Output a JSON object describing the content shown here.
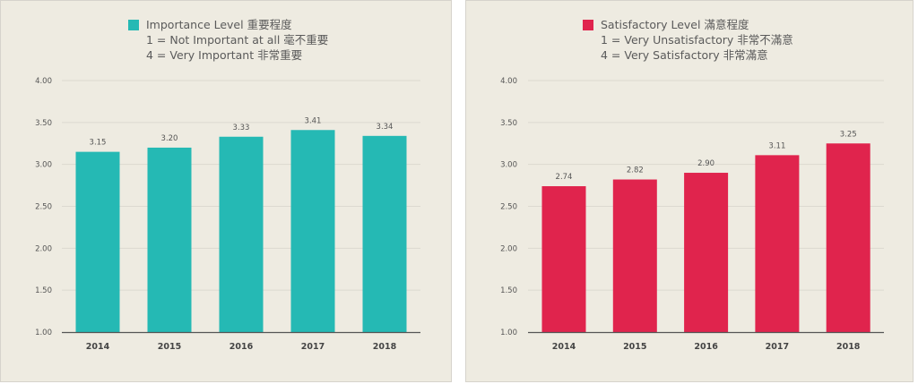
{
  "chart_data": [
    {
      "type": "bar",
      "legend": {
        "title": "Importance Level 重要程度",
        "line1": "1 = Not Important at all 毫不重要",
        "line2": "4 = Very Important 非常重要"
      },
      "color": "#25b9b4",
      "categories": [
        "2014",
        "2015",
        "2016",
        "2017",
        "2018"
      ],
      "values": [
        3.15,
        3.2,
        3.33,
        3.41,
        3.34
      ],
      "value_labels": [
        "3.15",
        "3.20",
        "3.33",
        "3.41",
        "3.34"
      ],
      "yticks": [
        "1.00",
        "1.50",
        "2.00",
        "2.50",
        "3.00",
        "3.50",
        "4.00"
      ],
      "ylim": [
        1,
        4
      ],
      "grid": true,
      "legend_placement": "top-center"
    },
    {
      "type": "bar",
      "legend": {
        "title": "Satisfactory Level 滿意程度",
        "line1": "1 = Very Unsatisfactory 非常不滿意",
        "line2": "4 = Very Satisfactory 非常滿意"
      },
      "color": "#e0244d",
      "categories": [
        "2014",
        "2015",
        "2016",
        "2017",
        "2018"
      ],
      "values": [
        2.74,
        2.82,
        2.9,
        3.11,
        3.25
      ],
      "value_labels": [
        "2.74",
        "2.82",
        "2.90",
        "3.11",
        "3.25"
      ],
      "yticks": [
        "1.00",
        "1.50",
        "2.00",
        "2.50",
        "3.00",
        "3.50",
        "4.00"
      ],
      "ylim": [
        1,
        4
      ],
      "grid": true,
      "legend_placement": "top-center"
    }
  ]
}
